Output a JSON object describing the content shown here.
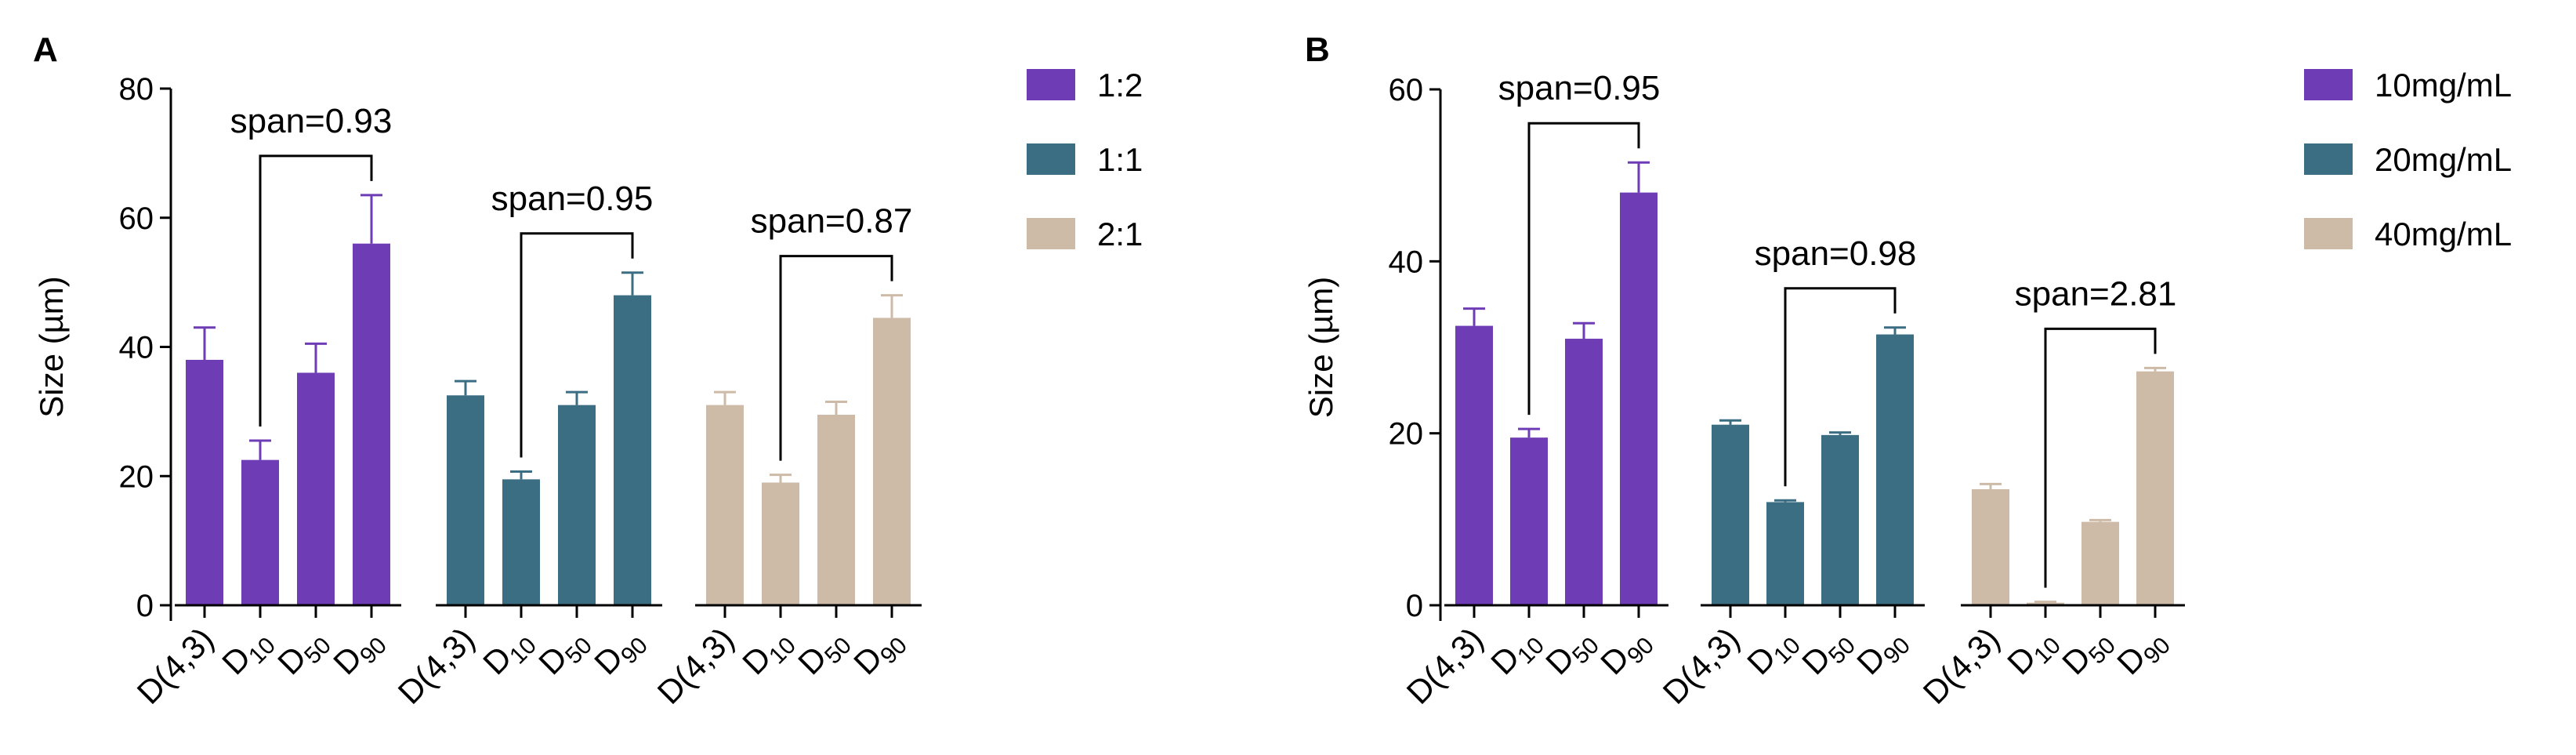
{
  "chart_data": [
    {
      "type": "bar",
      "panel_label": "A",
      "ylabel": "Size (µm)",
      "ylim": [
        0,
        80
      ],
      "yticks": [
        "0",
        "20",
        "40",
        "60",
        "80"
      ],
      "categories": [
        {
          "main": "D(4,3)",
          "sub": ""
        },
        {
          "main": "D",
          "sub": "10"
        },
        {
          "main": "D",
          "sub": "50"
        },
        {
          "main": "D",
          "sub": "90"
        }
      ],
      "series": [
        {
          "name": "1:2",
          "color": "#6E3DB5",
          "values": [
            38,
            22.5,
            36,
            56
          ],
          "errors": [
            5,
            3,
            4.5,
            7.5
          ],
          "span_label": "span=0.93"
        },
        {
          "name": "1:1",
          "color": "#3B6E82",
          "values": [
            32.5,
            19.5,
            31,
            48
          ],
          "errors": [
            2.2,
            1.2,
            2,
            3.5
          ],
          "span_label": "span=0.95"
        },
        {
          "name": "2:1",
          "color": "#CDBBA8",
          "values": [
            31,
            19,
            29.5,
            44.5
          ],
          "errors": [
            2,
            1.2,
            2,
            3.5
          ],
          "span_label": "span=0.87"
        }
      ],
      "legend_position": "top-right"
    },
    {
      "type": "bar",
      "panel_label": "B",
      "ylabel": "Size (µm)",
      "ylim": [
        0,
        60
      ],
      "yticks": [
        "0",
        "20",
        "40",
        "60"
      ],
      "categories": [
        {
          "main": "D(4,3)",
          "sub": ""
        },
        {
          "main": "D",
          "sub": "10"
        },
        {
          "main": "D",
          "sub": "50"
        },
        {
          "main": "D",
          "sub": "90"
        }
      ],
      "series": [
        {
          "name": "10mg/mL",
          "color": "#6E3DB5",
          "values": [
            32.5,
            19.5,
            31,
            48
          ],
          "errors": [
            2,
            1,
            1.8,
            3.5
          ],
          "span_label": "span=0.95"
        },
        {
          "name": "20mg/mL",
          "color": "#3B6E82",
          "values": [
            21,
            12,
            19.8,
            31.5
          ],
          "errors": [
            0.5,
            0.2,
            0.3,
            0.8
          ],
          "span_label": "span=0.98"
        },
        {
          "name": "40mg/mL",
          "color": "#CDBBA8",
          "values": [
            13.5,
            0.3,
            9.7,
            27.2
          ],
          "errors": [
            0.6,
            0.1,
            0.2,
            0.4
          ],
          "span_label": "span=2.81"
        }
      ],
      "legend_position": "top-right"
    }
  ]
}
